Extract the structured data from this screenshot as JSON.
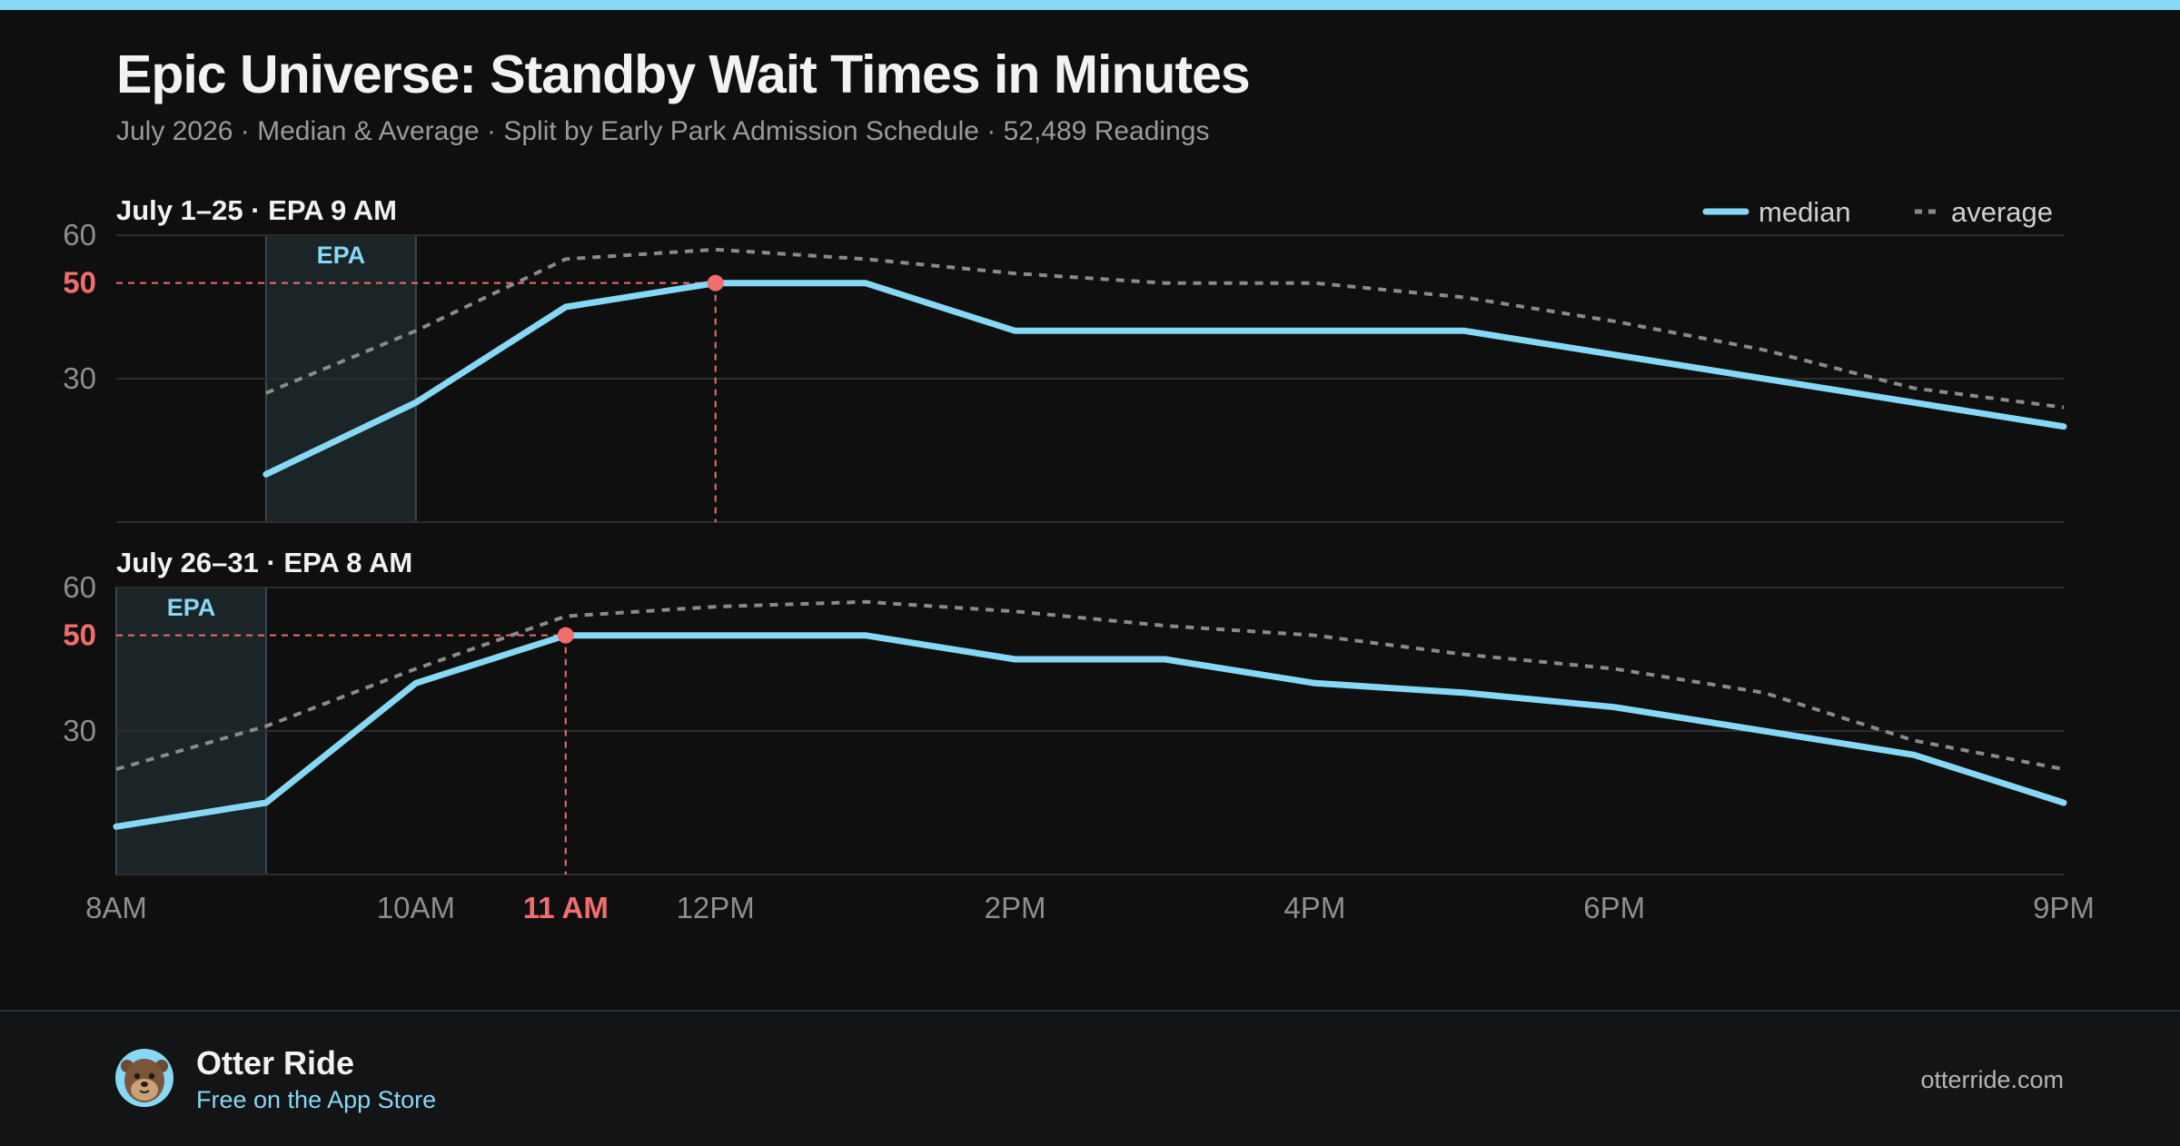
{
  "header": {
    "title": "Epic Universe: Standby Wait Times in Minutes",
    "subtitle": "July 2026 · Median & Average · Split by Early Park Admission Schedule · 52,489 Readings"
  },
  "colors": {
    "median": "#86d8f5",
    "average": "#8a8a8a",
    "highlight": "#f26d6d",
    "epa_fill": "#1b2427",
    "grid": "#2c2c2e"
  },
  "legend": {
    "median": "median",
    "average": "average",
    "position": "top-right"
  },
  "footer": {
    "brand": "Otter Ride",
    "tagline": "Free on the App Store",
    "site": "otterride.com",
    "logo_icon": "otter-icon"
  },
  "chart_data": {
    "type": "line",
    "x_range": [
      8,
      21
    ],
    "x_ticks": [
      {
        "x": 8,
        "label": "8AM"
      },
      {
        "x": 10,
        "label": "10AM"
      },
      {
        "x": 11,
        "label": "11 AM",
        "highlight": true
      },
      {
        "x": 12,
        "label": "12PM"
      },
      {
        "x": 14,
        "label": "2PM"
      },
      {
        "x": 16,
        "label": "4PM"
      },
      {
        "x": 18,
        "label": "6PM"
      },
      {
        "x": 21,
        "label": "9PM"
      }
    ],
    "grid": true,
    "panels": [
      {
        "title": "July 1–25 · EPA 9 AM",
        "ylim": [
          0,
          60
        ],
        "y_ticks": [
          {
            "v": 60,
            "label": "60"
          },
          {
            "v": 50,
            "label": "50",
            "highlight": true
          },
          {
            "v": 30,
            "label": "30"
          }
        ],
        "epa": {
          "label": "EPA",
          "from": 9,
          "to": 10
        },
        "peak": {
          "x": 12,
          "y": 50
        },
        "series": [
          {
            "name": "median",
            "style": "solid",
            "x": [
              9,
              10,
              11,
              12,
              13,
              14,
              15,
              16,
              17,
              18,
              19,
              20,
              21
            ],
            "y": [
              10,
              25,
              45,
              50,
              50,
              40,
              40,
              40,
              40,
              35,
              30,
              25,
              20
            ]
          },
          {
            "name": "average",
            "style": "dashed",
            "x": [
              9,
              10,
              11,
              12,
              13,
              14,
              15,
              16,
              17,
              18,
              19,
              20,
              21
            ],
            "y": [
              27,
              40,
              55,
              57,
              55,
              52,
              50,
              50,
              47,
              42,
              36,
              28,
              24
            ]
          }
        ]
      },
      {
        "title": "July 26–31 · EPA 8 AM",
        "ylim": [
          0,
          60
        ],
        "y_ticks": [
          {
            "v": 60,
            "label": "60"
          },
          {
            "v": 50,
            "label": "50",
            "highlight": true
          },
          {
            "v": 30,
            "label": "30"
          }
        ],
        "epa": {
          "label": "EPA",
          "from": 8,
          "to": 9
        },
        "peak": {
          "x": 11,
          "y": 50
        },
        "series": [
          {
            "name": "median",
            "style": "solid",
            "x": [
              8,
              9,
              10,
              11,
              12,
              13,
              14,
              15,
              16,
              17,
              18,
              19,
              20,
              21
            ],
            "y": [
              10,
              15,
              40,
              50,
              50,
              50,
              45,
              45,
              40,
              38,
              35,
              30,
              25,
              15
            ]
          },
          {
            "name": "average",
            "style": "dashed",
            "x": [
              8,
              9,
              10,
              11,
              12,
              13,
              14,
              15,
              16,
              17,
              18,
              19,
              20,
              21
            ],
            "y": [
              22,
              31,
              43,
              54,
              56,
              57,
              55,
              52,
              50,
              46,
              43,
              38,
              28,
              22
            ]
          }
        ]
      }
    ]
  }
}
